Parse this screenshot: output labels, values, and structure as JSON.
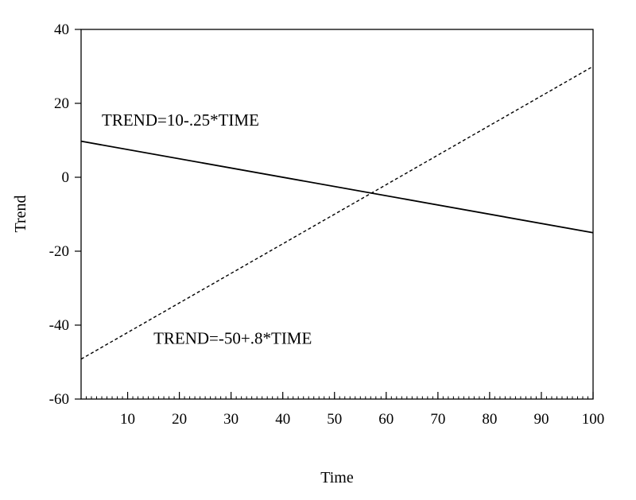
{
  "chart_data": {
    "type": "line",
    "title": "",
    "xlabel": "Time",
    "ylabel": "Trend",
    "xlim": [
      1,
      100
    ],
    "ylim": [
      -60,
      40
    ],
    "grid": false,
    "legend": "none",
    "x_ticks": [
      10,
      20,
      30,
      40,
      50,
      60,
      70,
      80,
      90,
      100
    ],
    "x_tick_labels": [
      "10",
      "20",
      "30",
      "40",
      "50",
      "60",
      "70",
      "80",
      "90",
      "100"
    ],
    "y_ticks": [
      40,
      20,
      0,
      -20,
      -40,
      -60
    ],
    "y_tick_labels": [
      "40",
      "20",
      "0",
      "-20",
      "-40",
      "-60"
    ],
    "series": [
      {
        "style": "solid",
        "color": "#000000",
        "x": [
          1,
          100
        ],
        "y": [
          9.75,
          -15
        ]
      },
      {
        "style": "dashed",
        "color": "#000000",
        "x": [
          1,
          100
        ],
        "y": [
          -49.2,
          30
        ]
      }
    ],
    "annotations": [
      {
        "text": "TREND=10-.25*TIME",
        "x": 5,
        "y": 14
      },
      {
        "text": "TREND=-50+.8*TIME",
        "x": 15,
        "y": -45
      }
    ]
  }
}
